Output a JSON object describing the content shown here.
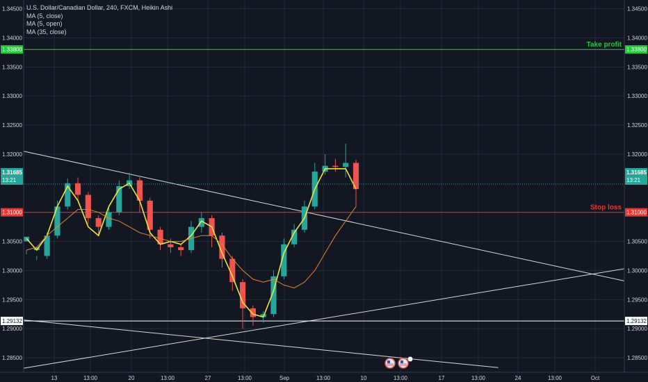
{
  "legend": {
    "symbol": "U.S. Dollar/Canadian Dollar, 240, FXCM, Heikin Ashi",
    "ma1": "MA (5, close)",
    "ma2": "MA (5, open)",
    "ma3": "MA (35, close)"
  },
  "colors": {
    "background": "#131722",
    "grid": "#242a3a",
    "axis_text": "#d1d4dc",
    "up_candle": "#26a69a",
    "down_candle": "#ef5350",
    "ma_fast": "#f0e442",
    "ma_open": "#26a69a",
    "ma_slow": "#e0872d",
    "take_profit": "#27c93f",
    "stop_loss": "#e53935",
    "trend_lines": "#d9d9d9",
    "price_tag": "#26a69a"
  },
  "chart_data": {
    "type": "candlestick",
    "title": "U.S. Dollar/Canadian Dollar, 240, FXCM, Heikin Ashi",
    "y_ticks": [
      "1.34500",
      "1.34000",
      "1.33500",
      "1.33000",
      "1.32500",
      "1.32000",
      "1.30500",
      "1.30000",
      "1.29500",
      "1.29000",
      "1.28500"
    ],
    "y_tick_values": [
      1.345,
      1.34,
      1.335,
      1.33,
      1.325,
      1.32,
      1.305,
      1.3,
      1.295,
      1.29,
      1.285
    ],
    "x_ticks": [
      "13",
      "13:00",
      "20",
      "13:00",
      "27",
      "13:00",
      "Sep",
      "13:00",
      "10",
      "13:00",
      "17",
      "13:00",
      "24",
      "13:00",
      "Oct"
    ],
    "ylim": [
      1.2825,
      1.3465
    ],
    "grid": true,
    "horizontal_lines": [
      {
        "label": "Take profit",
        "value": 1.338,
        "tag": "1.33800",
        "color": "#27c93f"
      },
      {
        "label": "Stop loss",
        "value": 1.31,
        "tag": "1.31000",
        "color": "#e53935"
      },
      {
        "label": "",
        "value": 1.29132,
        "tag": "1.29132",
        "color": "#ffffff"
      }
    ],
    "price_tags": {
      "current": "1.31685",
      "countdown": "13:21"
    },
    "trend_lines": [
      {
        "from": [
          0.0,
          1.3205
        ],
        "to": [
          1.0,
          1.2982
        ]
      },
      {
        "from": [
          0.0,
          1.2832
        ],
        "to": [
          1.0,
          1.3003
        ]
      },
      {
        "from": [
          0.0,
          1.2915
        ],
        "to": [
          0.79,
          1.2833
        ]
      }
    ],
    "series": [
      {
        "name": "MA (5, close)",
        "color": "#f0e442",
        "values": [
          1.3055,
          1.3035,
          1.306,
          1.311,
          1.3145,
          1.312,
          1.3075,
          1.306,
          1.311,
          1.314,
          1.315,
          1.312,
          1.3065,
          1.3045,
          1.305,
          1.3045,
          1.306,
          1.3085,
          1.3075,
          1.303,
          1.299,
          1.2945,
          1.2925,
          1.292,
          1.2965,
          1.303,
          1.3065,
          1.309,
          1.314,
          1.3175,
          1.3175,
          1.3175,
          1.314
        ]
      },
      {
        "name": "MA (35, close)",
        "color": "#e0872d",
        "values": [
          1.3035,
          1.304,
          1.306,
          1.3075,
          1.309,
          1.3105,
          1.3105,
          1.31,
          1.309,
          1.3085,
          1.3075,
          1.3065,
          1.306,
          1.3055,
          1.305,
          1.305,
          1.3055,
          1.306,
          1.306,
          1.3045,
          1.302,
          1.3,
          1.2985,
          1.298,
          1.2985,
          1.2975,
          1.297,
          1.298,
          1.3,
          1.303,
          1.306,
          1.3085,
          1.311
        ]
      }
    ],
    "candles": [
      [
        1.305,
        1.3058,
        1.3035,
        1.3028
      ],
      [
        1.3035,
        1.304,
        1.3025,
        1.3018
      ],
      [
        1.3025,
        1.306,
        1.3065,
        1.302
      ],
      [
        1.306,
        1.311,
        1.312,
        1.3055
      ],
      [
        1.311,
        1.315,
        1.3158,
        1.3105
      ],
      [
        1.315,
        1.313,
        1.316,
        1.312
      ],
      [
        1.313,
        1.309,
        1.3135,
        1.308
      ],
      [
        1.309,
        1.3075,
        1.3095,
        1.306
      ],
      [
        1.3075,
        1.31,
        1.311,
        1.307
      ],
      [
        1.31,
        1.3145,
        1.3155,
        1.3095
      ],
      [
        1.3145,
        1.3155,
        1.3168,
        1.314
      ],
      [
        1.3155,
        1.312,
        1.316,
        1.31
      ],
      [
        1.312,
        1.307,
        1.3125,
        1.3055
      ],
      [
        1.307,
        1.3045,
        1.3075,
        1.3035
      ],
      [
        1.3045,
        1.304,
        1.3055,
        1.303
      ],
      [
        1.304,
        1.3035,
        1.3045,
        1.3025
      ],
      [
        1.3035,
        1.3075,
        1.3085,
        1.303
      ],
      [
        1.3075,
        1.309,
        1.31,
        1.3065
      ],
      [
        1.309,
        1.306,
        1.3095,
        1.304
      ],
      [
        1.306,
        1.302,
        1.3065,
        1.3005
      ],
      [
        1.302,
        1.298,
        1.3025,
        1.2965
      ],
      [
        1.298,
        1.2935,
        1.2985,
        1.29
      ],
      [
        1.2935,
        1.292,
        1.294,
        1.2905
      ],
      [
        1.292,
        1.2925,
        1.293,
        1.291
      ],
      [
        1.2925,
        1.299,
        1.3,
        1.292
      ],
      [
        1.299,
        1.3045,
        1.3055,
        1.2985
      ],
      [
        1.3045,
        1.307,
        1.308,
        1.304
      ],
      [
        1.307,
        1.311,
        1.312,
        1.3065
      ],
      [
        1.311,
        1.317,
        1.3185,
        1.3105
      ],
      [
        1.317,
        1.318,
        1.32,
        1.3165
      ],
      [
        1.318,
        1.3178,
        1.3192,
        1.317
      ],
      [
        1.3178,
        1.3185,
        1.3218,
        1.316
      ],
      [
        1.3185,
        1.314,
        1.319,
        1.311
      ]
    ]
  }
}
